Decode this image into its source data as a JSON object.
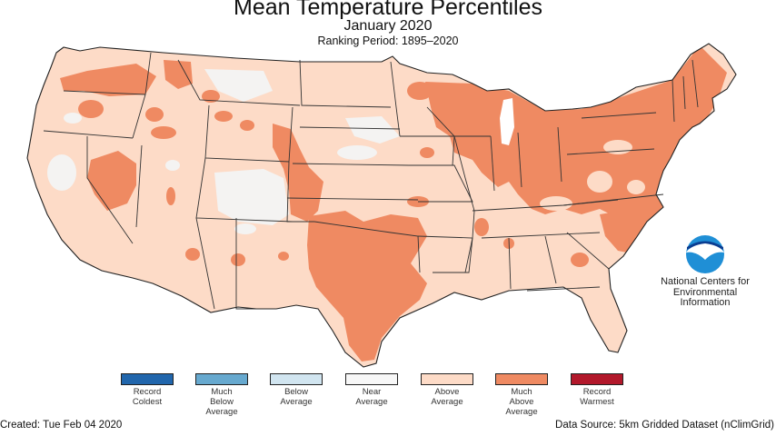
{
  "header": {
    "title": "Mean Temperature Percentiles",
    "subtitle": "January 2020",
    "ranking_period": "Ranking Period: 1895–2020"
  },
  "colors": {
    "record_coldest": "#2166ac",
    "much_below": "#67a9cf",
    "below": "#d1e5f0",
    "near": "#f7f7f7",
    "above": "#fddbc7",
    "much_above": "#ef8a62",
    "record_warmest": "#b2182b",
    "border": "#333333"
  },
  "legend": [
    {
      "label": "Record\nColdest",
      "color": "#2166ac"
    },
    {
      "label": "Much\nBelow\nAverage",
      "color": "#67a9cf"
    },
    {
      "label": "Below\nAverage",
      "color": "#d1e5f0"
    },
    {
      "label": "Near\nAverage",
      "color": "#f7f7f7"
    },
    {
      "label": "Above\nAverage",
      "color": "#fddbc7"
    },
    {
      "label": "Much\nAbove\nAverage",
      "color": "#ef8a62"
    },
    {
      "label": "Record\nWarmest",
      "color": "#b2182b"
    }
  ],
  "logo": {
    "mark": "NOAA",
    "org": "National Centers for\nEnvironmental\nInformation"
  },
  "footer": {
    "created": "Created: Tue Feb 04 2020",
    "source": "Data Source: 5km Gridded Dataset (nClimGrid)"
  }
}
